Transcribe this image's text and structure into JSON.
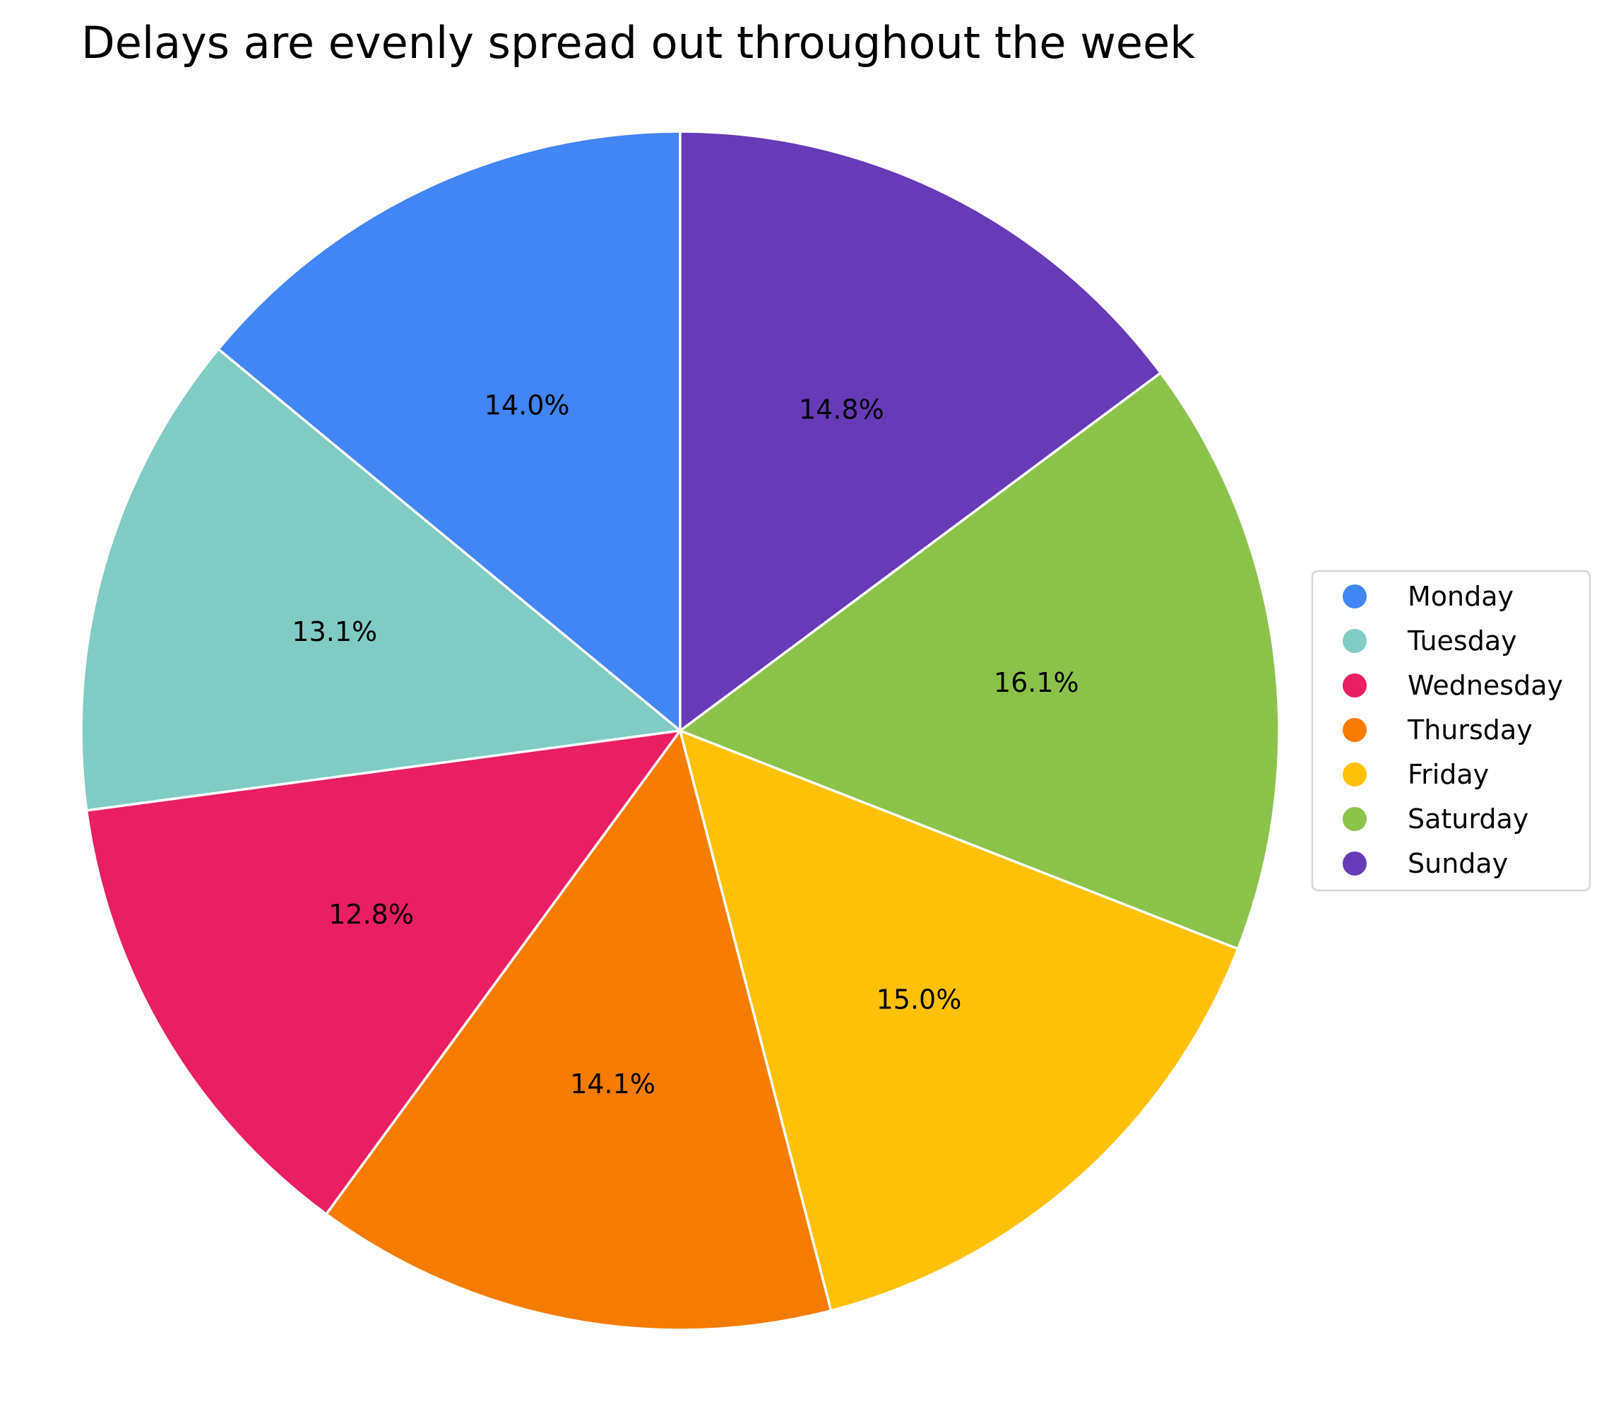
{
  "chart_data": {
    "type": "pie",
    "title": "Delays are evenly spread out throughout the week",
    "categories": [
      "Monday",
      "Tuesday",
      "Wednesday",
      "Thursday",
      "Friday",
      "Saturday",
      "Sunday"
    ],
    "values": [
      14.0,
      13.1,
      12.8,
      14.1,
      15.0,
      16.1,
      14.8
    ],
    "value_labels": [
      "14.0%",
      "13.1%",
      "12.8%",
      "14.1%",
      "15.0%",
      "16.1%",
      "14.8%"
    ],
    "colors": [
      "#4285f4",
      "#80cbc4",
      "#e91e63",
      "#f57c00",
      "#ffc107",
      "#8bc34a",
      "#673ab7"
    ],
    "start_angle_deg": 90,
    "direction": "counterclockwise",
    "slice_edge_color": "#ffffff",
    "legend": {
      "placement": "center-right",
      "marker": "circle"
    }
  }
}
